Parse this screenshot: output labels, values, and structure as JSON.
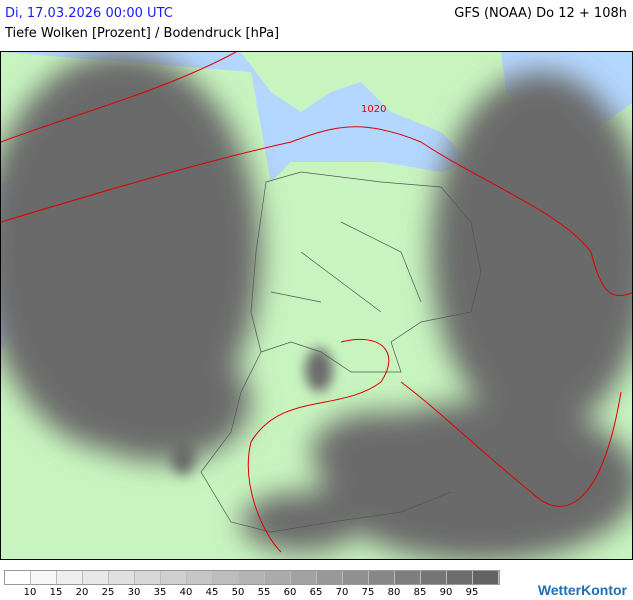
{
  "header": {
    "date": "Di, 17.03.2026 00:00 UTC",
    "model": "GFS (NOAA) Do 12 + 108h",
    "parameter": "Tiefe Wolken [Prozent] / Bodendruck [hPa]"
  },
  "map": {
    "isobar_label": "1020",
    "colors": {
      "land": "#c8f5bf",
      "water": "#b4d7ff",
      "isobar": "#e00000",
      "cloud": "#6a6a6a",
      "border": "#555555"
    }
  },
  "legend": {
    "colors": [
      "#ffffff",
      "#f6f6f6",
      "#efefef",
      "#e8e8e8",
      "#e0e0e0",
      "#d8d8d8",
      "#d0d0d0",
      "#c6c6c6",
      "#bdbdbd",
      "#b4b4b4",
      "#ababab",
      "#a2a2a2",
      "#999999",
      "#909090",
      "#878787",
      "#7e7e7e",
      "#757575",
      "#6c6c6c",
      "#636363"
    ],
    "labels": [
      "10",
      "15",
      "20",
      "25",
      "30",
      "35",
      "40",
      "45",
      "50",
      "55",
      "60",
      "65",
      "70",
      "75",
      "80",
      "85",
      "90",
      "95"
    ]
  },
  "logo": "WetterKontor"
}
